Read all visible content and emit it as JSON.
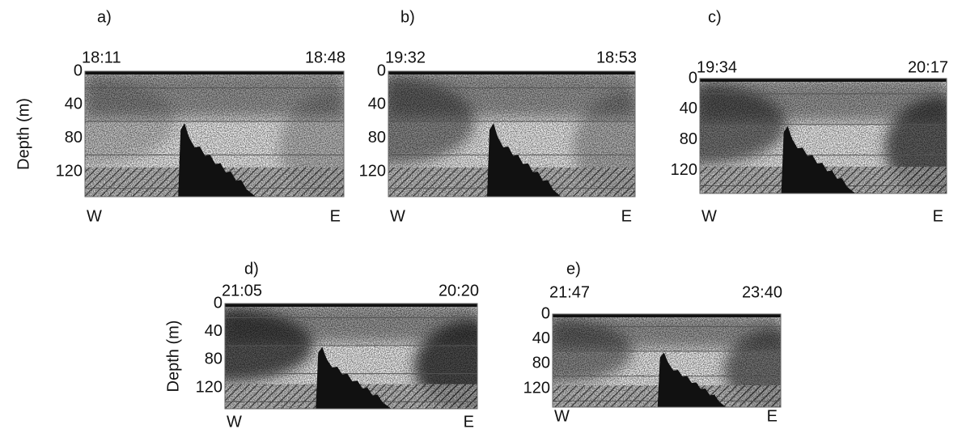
{
  "panels": [
    {
      "label": "a)",
      "start_time": "18:11",
      "end_time": "18:48",
      "depth_ticks": [
        0,
        40,
        80,
        120
      ],
      "west": "W",
      "east": "E",
      "y_axis_label": "Depth (m)"
    },
    {
      "label": "b)",
      "start_time": "19:32",
      "end_time": "18:53",
      "depth_ticks": [
        0,
        40,
        80,
        120
      ],
      "west": "W",
      "east": "E"
    },
    {
      "label": "c)",
      "start_time": "19:34",
      "end_time": "20:17",
      "depth_ticks": [
        0,
        40,
        80,
        120
      ],
      "west": "W",
      "east": "E"
    },
    {
      "label": "d)",
      "start_time": "21:05",
      "end_time": "20:20",
      "depth_ticks": [
        0,
        40,
        80,
        120
      ],
      "west": "W",
      "east": "E",
      "y_axis_label": "Depth (m)"
    },
    {
      "label": "e)",
      "start_time": "21:47",
      "end_time": "23:40",
      "depth_ticks": [
        0,
        40,
        80,
        120
      ],
      "west": "W",
      "east": "E"
    }
  ]
}
